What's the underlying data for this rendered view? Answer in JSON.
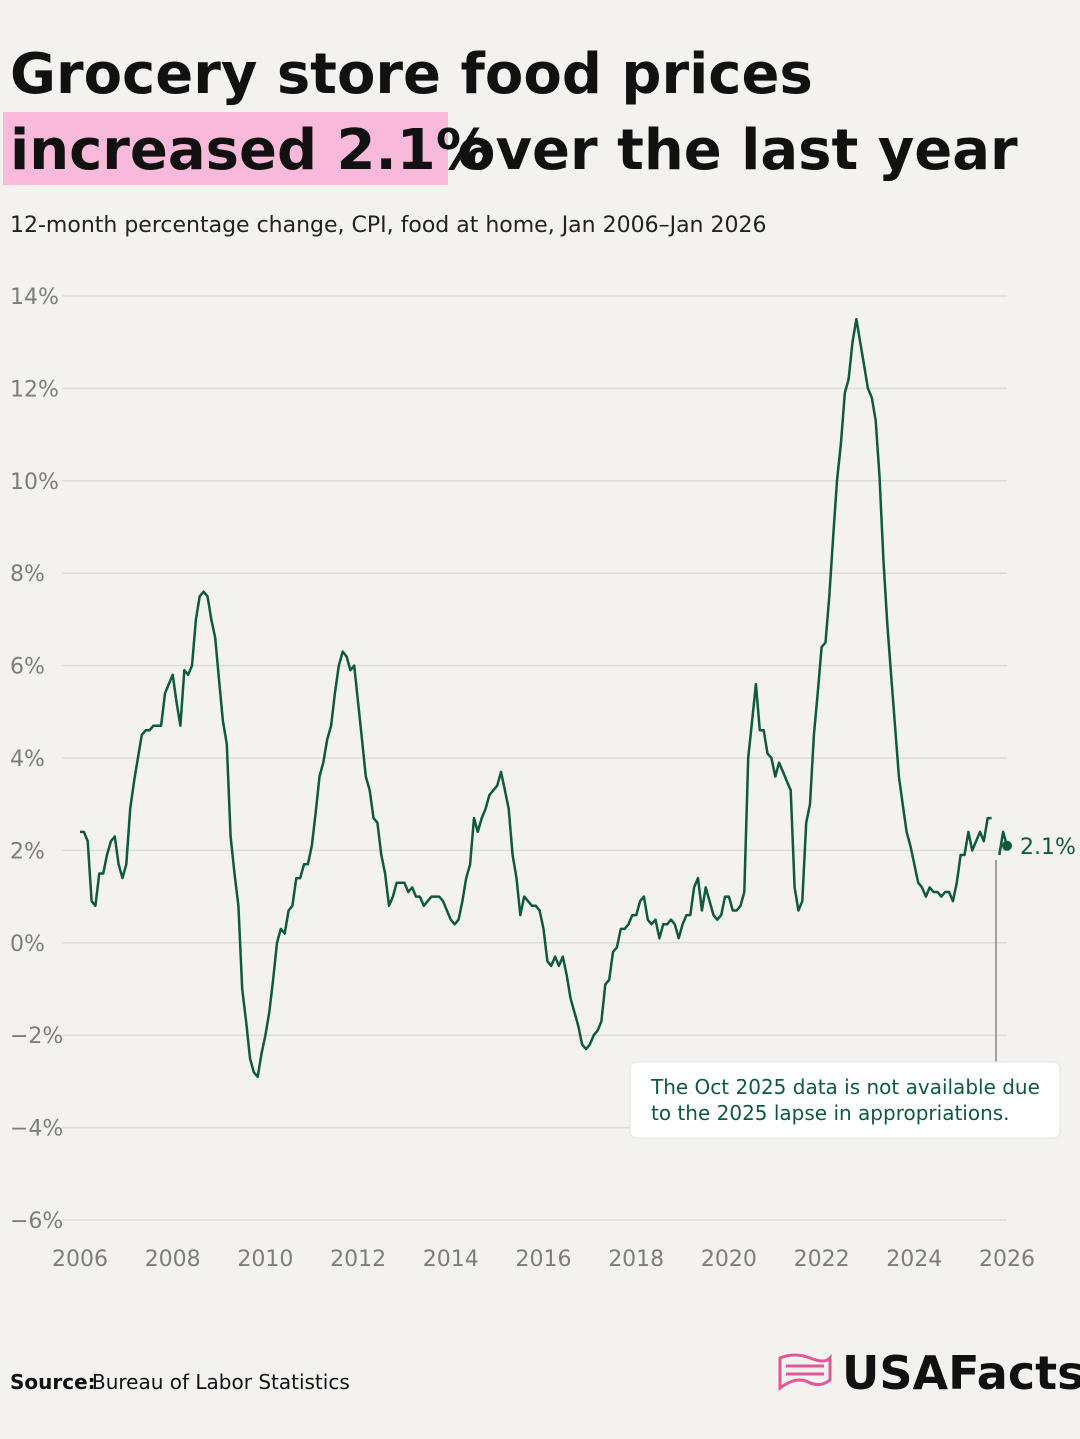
{
  "chart_data": {
    "type": "line",
    "title": [
      "Grocery store food prices",
      "increased 2.1%",
      "over the last year"
    ],
    "subtitle": "12-month percentage change, CPI, food at home, Jan 2006–Jan 2026",
    "color": "#0e5a3e",
    "highlight_color": "#f9b9da",
    "grid": true,
    "xlim": [
      2006,
      2026
    ],
    "xticks": [
      2006,
      2008,
      2010,
      2012,
      2014,
      2016,
      2018,
      2020,
      2022,
      2024,
      2026
    ],
    "ylim": [
      -6,
      14
    ],
    "yticks": [
      {
        "value": -6,
        "label": "−6%"
      },
      {
        "value": -4,
        "label": "−4%"
      },
      {
        "value": -2,
        "label": "−2%"
      },
      {
        "value": 0,
        "label": "0%"
      },
      {
        "value": 2,
        "label": "2%"
      },
      {
        "value": 4,
        "label": "4%"
      },
      {
        "value": 6,
        "label": "6%"
      },
      {
        "value": 8,
        "label": "8%"
      },
      {
        "value": 10,
        "label": "10%"
      },
      {
        "value": 12,
        "label": "12%"
      },
      {
        "value": 14,
        "label": "14%"
      }
    ],
    "x": [
      "2006-01",
      "2006-02",
      "2006-03",
      "2006-04",
      "2006-05",
      "2006-06",
      "2006-07",
      "2006-08",
      "2006-09",
      "2006-10",
      "2006-11",
      "2006-12",
      "2007-01",
      "2007-02",
      "2007-03",
      "2007-04",
      "2007-05",
      "2007-06",
      "2007-07",
      "2007-08",
      "2007-09",
      "2007-10",
      "2007-11",
      "2007-12",
      "2008-01",
      "2008-02",
      "2008-03",
      "2008-04",
      "2008-05",
      "2008-06",
      "2008-07",
      "2008-08",
      "2008-09",
      "2008-10",
      "2008-11",
      "2008-12",
      "2009-01",
      "2009-02",
      "2009-03",
      "2009-04",
      "2009-05",
      "2009-06",
      "2009-07",
      "2009-08",
      "2009-09",
      "2009-10",
      "2009-11",
      "2009-12",
      "2010-01",
      "2010-02",
      "2010-03",
      "2010-04",
      "2010-05",
      "2010-06",
      "2010-07",
      "2010-08",
      "2010-09",
      "2010-10",
      "2010-11",
      "2010-12",
      "2011-01",
      "2011-02",
      "2011-03",
      "2011-04",
      "2011-05",
      "2011-06",
      "2011-07",
      "2011-08",
      "2011-09",
      "2011-10",
      "2011-11",
      "2011-12",
      "2012-01",
      "2012-02",
      "2012-03",
      "2012-04",
      "2012-05",
      "2012-06",
      "2012-07",
      "2012-08",
      "2012-09",
      "2012-10",
      "2012-11",
      "2012-12",
      "2013-01",
      "2013-02",
      "2013-03",
      "2013-04",
      "2013-05",
      "2013-06",
      "2013-07",
      "2013-08",
      "2013-09",
      "2013-10",
      "2013-11",
      "2013-12",
      "2014-01",
      "2014-02",
      "2014-03",
      "2014-04",
      "2014-05",
      "2014-06",
      "2014-07",
      "2014-08",
      "2014-09",
      "2014-10",
      "2014-11",
      "2014-12",
      "2015-01",
      "2015-02",
      "2015-03",
      "2015-04",
      "2015-05",
      "2015-06",
      "2015-07",
      "2015-08",
      "2015-09",
      "2015-10",
      "2015-11",
      "2015-12",
      "2016-01",
      "2016-02",
      "2016-03",
      "2016-04",
      "2016-05",
      "2016-06",
      "2016-07",
      "2016-08",
      "2016-09",
      "2016-10",
      "2016-11",
      "2016-12",
      "2017-01",
      "2017-02",
      "2017-03",
      "2017-04",
      "2017-05",
      "2017-06",
      "2017-07",
      "2017-08",
      "2017-09",
      "2017-10",
      "2017-11",
      "2017-12",
      "2018-01",
      "2018-02",
      "2018-03",
      "2018-04",
      "2018-05",
      "2018-06",
      "2018-07",
      "2018-08",
      "2018-09",
      "2018-10",
      "2018-11",
      "2018-12",
      "2019-01",
      "2019-02",
      "2019-03",
      "2019-04",
      "2019-05",
      "2019-06",
      "2019-07",
      "2019-08",
      "2019-09",
      "2019-10",
      "2019-11",
      "2019-12",
      "2020-01",
      "2020-02",
      "2020-03",
      "2020-04",
      "2020-05",
      "2020-06",
      "2020-07",
      "2020-08",
      "2020-09",
      "2020-10",
      "2020-11",
      "2020-12",
      "2021-01",
      "2021-02",
      "2021-03",
      "2021-04",
      "2021-05",
      "2021-06",
      "2021-07",
      "2021-08",
      "2021-09",
      "2021-10",
      "2021-11",
      "2021-12",
      "2022-01",
      "2022-02",
      "2022-03",
      "2022-04",
      "2022-05",
      "2022-06",
      "2022-07",
      "2022-08",
      "2022-09",
      "2022-10",
      "2022-11",
      "2022-12",
      "2023-01",
      "2023-02",
      "2023-03",
      "2023-04",
      "2023-05",
      "2023-06",
      "2023-07",
      "2023-08",
      "2023-09",
      "2023-10",
      "2023-11",
      "2023-12",
      "2024-01",
      "2024-02",
      "2024-03",
      "2024-04",
      "2024-05",
      "2024-06",
      "2024-07",
      "2024-08",
      "2024-09",
      "2024-10",
      "2024-11",
      "2024-12",
      "2025-01",
      "2025-02",
      "2025-03",
      "2025-04",
      "2025-05",
      "2025-06",
      "2025-07",
      "2025-08",
      "2025-09",
      "2025-10",
      "2025-11",
      "2025-12",
      "2026-01"
    ],
    "values": [
      2.4,
      2.4,
      2.2,
      0.9,
      0.8,
      1.5,
      1.5,
      1.9,
      2.2,
      2.3,
      1.7,
      1.4,
      1.7,
      2.9,
      3.5,
      4.0,
      4.5,
      4.6,
      4.6,
      4.7,
      4.7,
      4.7,
      5.4,
      5.6,
      5.8,
      5.2,
      4.7,
      5.9,
      5.8,
      6.0,
      7.0,
      7.5,
      7.6,
      7.5,
      7.0,
      6.6,
      5.7,
      4.8,
      4.3,
      2.3,
      1.5,
      0.8,
      -1.0,
      -1.7,
      -2.5,
      -2.8,
      -2.9,
      -2.4,
      -2.0,
      -1.5,
      -0.8,
      0.0,
      0.3,
      0.2,
      0.7,
      0.8,
      1.4,
      1.4,
      1.7,
      1.7,
      2.1,
      2.8,
      3.6,
      3.9,
      4.4,
      4.7,
      5.4,
      6.0,
      6.3,
      6.2,
      5.9,
      6.0,
      5.2,
      4.4,
      3.6,
      3.3,
      2.7,
      2.6,
      1.9,
      1.5,
      0.8,
      1.0,
      1.3,
      1.3,
      1.3,
      1.1,
      1.2,
      1.0,
      1.0,
      0.8,
      0.9,
      1.0,
      1.0,
      1.0,
      0.9,
      0.7,
      0.5,
      0.4,
      0.5,
      0.9,
      1.4,
      1.7,
      2.7,
      2.4,
      2.7,
      2.9,
      3.2,
      3.3,
      3.4,
      3.7,
      3.3,
      2.9,
      1.9,
      1.4,
      0.6,
      1.0,
      0.9,
      0.8,
      0.8,
      0.7,
      0.3,
      -0.4,
      -0.5,
      -0.3,
      -0.5,
      -0.3,
      -0.7,
      -1.2,
      -1.5,
      -1.8,
      -2.2,
      -2.3,
      -2.2,
      -2.0,
      -1.9,
      -1.7,
      -0.9,
      -0.8,
      -0.2,
      -0.1,
      0.3,
      0.3,
      0.4,
      0.6,
      0.6,
      0.9,
      1.0,
      0.5,
      0.4,
      0.5,
      0.1,
      0.4,
      0.4,
      0.5,
      0.4,
      0.1,
      0.4,
      0.6,
      0.6,
      1.2,
      1.4,
      0.7,
      1.2,
      0.9,
      0.6,
      0.5,
      0.6,
      1.0,
      1.0,
      0.7,
      0.7,
      0.8,
      1.1,
      4.0,
      4.8,
      5.6,
      4.6,
      4.6,
      4.1,
      4.0,
      3.6,
      3.9,
      3.7,
      3.5,
      3.3,
      1.2,
      0.7,
      0.9,
      2.6,
      3.0,
      4.5,
      5.4,
      6.4,
      6.5,
      7.5,
      8.8,
      10.0,
      10.8,
      11.9,
      12.2,
      13.0,
      13.5,
      13.0,
      12.5,
      12.0,
      11.8,
      11.3,
      10.1,
      8.3,
      6.9,
      5.8,
      4.7,
      3.6,
      3.0,
      2.4,
      2.1,
      1.7,
      1.3,
      1.2,
      1.0,
      1.2,
      1.1,
      1.1,
      1.0,
      1.1,
      1.1,
      0.9,
      1.3,
      1.9,
      1.9,
      2.4,
      2.0,
      2.2,
      2.4,
      2.2,
      2.7,
      2.7,
      null,
      1.9,
      2.4,
      2.1
    ],
    "end_label": "2.1%",
    "annotation": [
      "The Oct 2025 data is not available due",
      "to the 2025 lapse in appropriations."
    ],
    "source": [
      "Source:",
      "Bureau of Labor Statistics"
    ],
    "logo": "USAFacts"
  }
}
